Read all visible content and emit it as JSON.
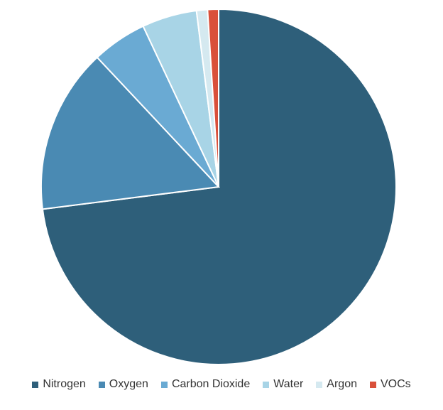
{
  "chart_data": {
    "type": "pie",
    "categories": [
      "Nitrogen",
      "Oxygen",
      "Carbon Dioxide",
      "Water",
      "Argon",
      "VOCs"
    ],
    "values": [
      73,
      15,
      5,
      5,
      1,
      1
    ],
    "colors": [
      "#2e5f7a",
      "#4a8ab3",
      "#6aaad3",
      "#a8d4e6",
      "#d5e9f0",
      "#d9503a"
    ],
    "legend": "bottom"
  }
}
